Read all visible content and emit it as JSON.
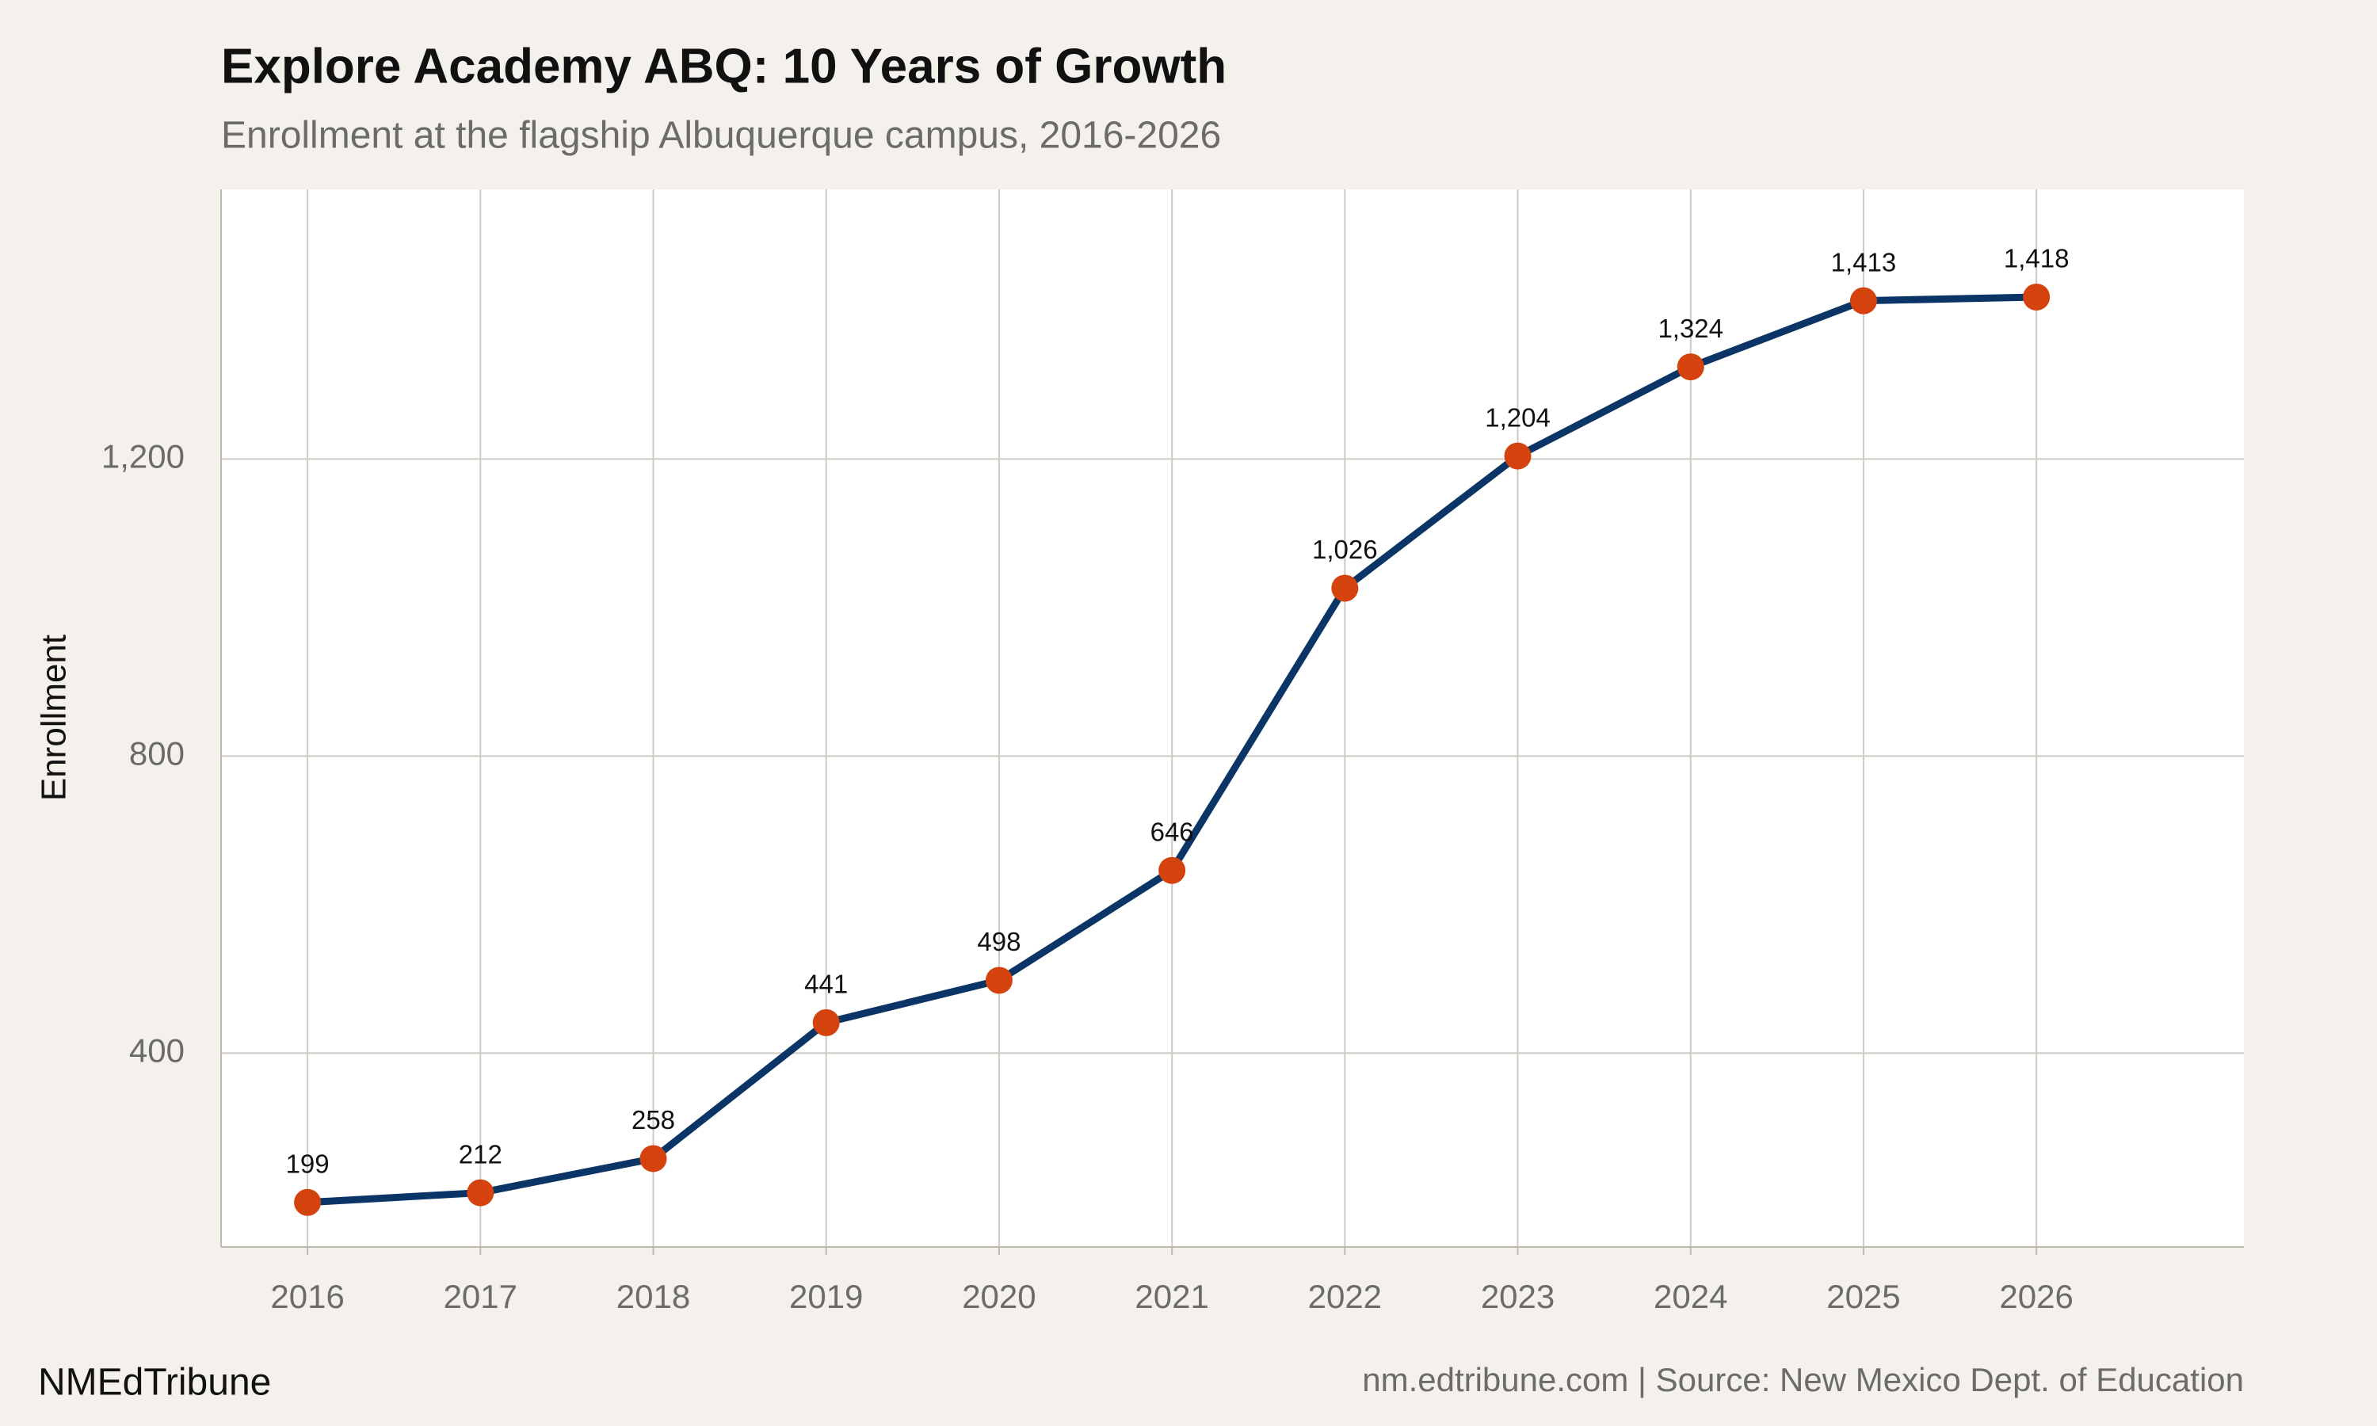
{
  "chart_data": {
    "type": "line",
    "title": "Explore Academy ABQ: 10 Years of Growth",
    "subtitle": "Enrollment at the flagship Albuquerque campus, 2016-2026",
    "y_label": "Enrollment",
    "brand": "NMEdTribune",
    "source": "nm.edtribune.com | Source: New Mexico Dept. of Education",
    "x": [
      2016,
      2017,
      2018,
      2019,
      2020,
      2021,
      2022,
      2023,
      2024,
      2025,
      2026
    ],
    "values": [
      199,
      212,
      258,
      441,
      498,
      646,
      1026,
      1204,
      1324,
      1413,
      1418
    ],
    "value_labels": [
      "199",
      "212",
      "258",
      "441",
      "498",
      "646",
      "1,026",
      "1,204",
      "1,324",
      "1,413",
      "1,418"
    ],
    "line_color": "#0b3566",
    "point_color": "#d4420d",
    "xlim": [
      2015.5,
      2027.2
    ],
    "xticks": [
      2016,
      2017,
      2018,
      2019,
      2020,
      2021,
      2022,
      2023,
      2024,
      2025,
      2026
    ],
    "ylim": [
      139,
      1563
    ],
    "yticks": [
      400,
      800,
      {
        "value": 1200,
        "label": "1,200"
      }
    ],
    "grid": true
  }
}
